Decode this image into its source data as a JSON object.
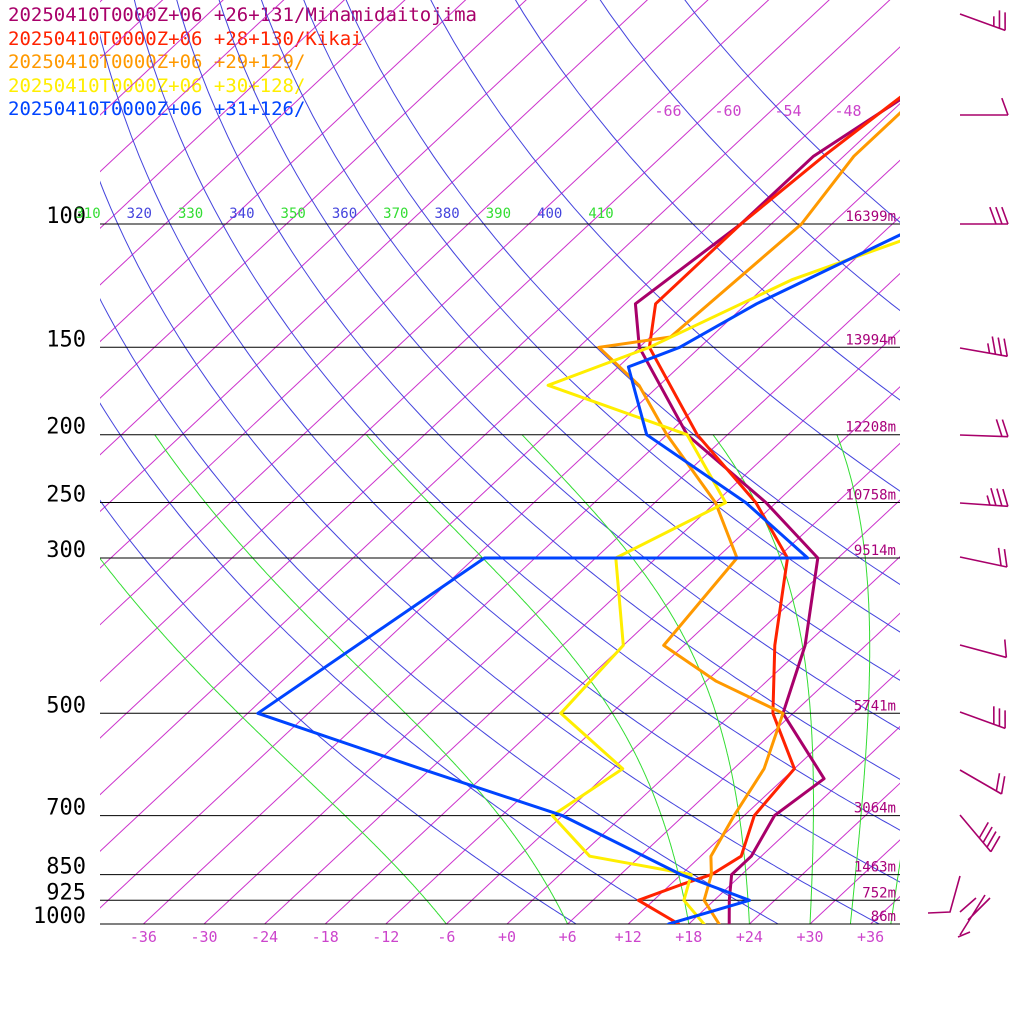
{
  "legend": [
    {
      "text": "20250410T0000Z+06 +26+131/Minamidaitojima",
      "color": "#a8006a"
    },
    {
      "text": "20250410T0000Z+06 +28+130/Kikai",
      "color": "#ff2200"
    },
    {
      "text": "20250410T0000Z+06 +29+129/",
      "color": "#ff9900"
    },
    {
      "text": "20250410T0000Z+06 +30+128/",
      "color": "#ffee00"
    },
    {
      "text": "20250410T0000Z+06 +31+126/",
      "color": "#0044ff"
    }
  ],
  "chart_data": {
    "type": "line",
    "title": "",
    "pressure_levels": [
      100,
      150,
      200,
      250,
      300,
      500,
      700,
      850,
      925,
      1000
    ],
    "pressure_labels": [
      "100",
      "150",
      "200",
      "250",
      "300",
      "500",
      "700",
      "850",
      "925",
      "1000"
    ],
    "height_labels": [
      {
        "p": 100,
        "text": "16399m"
      },
      {
        "p": 150,
        "text": "13994m"
      },
      {
        "p": 200,
        "text": "12208m"
      },
      {
        "p": 250,
        "text": "10758m"
      },
      {
        "p": 300,
        "text": "9514m"
      },
      {
        "p": 500,
        "text": "5741m"
      },
      {
        "p": 700,
        "text": "3064m"
      },
      {
        "p": 850,
        "text": "1463m"
      },
      {
        "p": 925,
        "text": "752m"
      },
      {
        "p": 1000,
        "text": "86m"
      }
    ],
    "x_tick_labels": [
      "-36",
      "-30",
      "-24",
      "-18",
      "-12",
      "-6",
      "+0",
      "+6",
      "+12",
      "+18",
      "+24",
      "+30",
      "+36"
    ],
    "x_tick_values": [
      -36,
      -30,
      -24,
      -18,
      -12,
      -6,
      0,
      6,
      12,
      18,
      24,
      30,
      36
    ],
    "upper_temp_labels": [
      "-66",
      "-60",
      "-54",
      "-48"
    ],
    "theta_labels": [
      {
        "text": "310",
        "color": "#33dd33"
      },
      {
        "text": "320",
        "color": "#4444dd"
      },
      {
        "text": "330",
        "color": "#33dd33"
      },
      {
        "text": "340",
        "color": "#4444dd"
      },
      {
        "text": "350",
        "color": "#33dd33"
      },
      {
        "text": "360",
        "color": "#4444dd"
      },
      {
        "text": "370",
        "color": "#33dd33"
      },
      {
        "text": "380",
        "color": "#4444dd"
      },
      {
        "text": "390",
        "color": "#33dd33"
      },
      {
        "text": "400",
        "color": "#4444dd"
      },
      {
        "text": "410",
        "color": "#33dd33"
      }
    ],
    "series": [
      {
        "name": "20250410T0000Z+06 +26+131/Minamidaitojima",
        "color": "#a8006a",
        "points": [
          [
            1000,
            22.0
          ],
          [
            925,
            19.5
          ],
          [
            850,
            17.0
          ],
          [
            800,
            17.0
          ],
          [
            700,
            15.0
          ],
          [
            620,
            16.0
          ],
          [
            500,
            5.0
          ],
          [
            400,
            0.0
          ],
          [
            300,
            -8.0
          ],
          [
            250,
            -19.0
          ],
          [
            200,
            -34.0
          ],
          [
            150,
            -48.0
          ],
          [
            130,
            -53.0
          ],
          [
            100,
            -51.0
          ],
          [
            80,
            -51.0
          ],
          [
            60,
            -47.0
          ],
          [
            45,
            -29.0
          ],
          [
            40,
            -20.0
          ]
        ]
      },
      {
        "name": "20250410T0000Z+06 +28+130/Kikai",
        "color": "#ff2200",
        "points": [
          [
            1000,
            17.0
          ],
          [
            925,
            10.5
          ],
          [
            880,
            13.0
          ],
          [
            850,
            15.0
          ],
          [
            800,
            16.0
          ],
          [
            700,
            13.0
          ],
          [
            600,
            12.0
          ],
          [
            500,
            4.0
          ],
          [
            400,
            -3.0
          ],
          [
            300,
            -11.0
          ],
          [
            250,
            -20.0
          ],
          [
            200,
            -33.0
          ],
          [
            150,
            -47.0
          ],
          [
            130,
            -51.0
          ],
          [
            100,
            -51.0
          ],
          [
            80,
            -50.0
          ],
          [
            60,
            -48.0
          ],
          [
            45,
            -34.0
          ],
          [
            40,
            -22.0
          ]
        ]
      },
      {
        "name": "20250410T0000Z+06 +29+129/",
        "color": "#ff9900",
        "points": [
          [
            1000,
            21.0
          ],
          [
            925,
            17.0
          ],
          [
            850,
            15.0
          ],
          [
            800,
            13.0
          ],
          [
            700,
            11.0
          ],
          [
            600,
            9.0
          ],
          [
            500,
            5.0
          ],
          [
            450,
            -5.0
          ],
          [
            400,
            -14.0
          ],
          [
            300,
            -16.0
          ],
          [
            250,
            -24.0
          ],
          [
            200,
            -36.0
          ],
          [
            170,
            -44.0
          ],
          [
            150,
            -52.0
          ],
          [
            145,
            -46.0
          ],
          [
            100,
            -45.0
          ],
          [
            80,
            -47.0
          ],
          [
            60,
            -47.0
          ],
          [
            45,
            -33.0
          ],
          [
            40,
            -16.0
          ]
        ]
      },
      {
        "name": "20250410T0000Z+06 +30+128/",
        "color": "#ffee00",
        "points": [
          [
            1000,
            19.5
          ],
          [
            925,
            15.0
          ],
          [
            850,
            13.0
          ],
          [
            800,
            1.0
          ],
          [
            700,
            -7.0
          ],
          [
            600,
            -5.0
          ],
          [
            500,
            -17.0
          ],
          [
            400,
            -18.0
          ],
          [
            300,
            -28.0
          ],
          [
            250,
            -23.0
          ],
          [
            200,
            -34.0
          ],
          [
            170,
            -53.0
          ],
          [
            150,
            -47.0
          ],
          [
            120,
            -40.0
          ],
          [
            105,
            -33.0
          ],
          [
            100,
            -33.0
          ],
          [
            80,
            -40.0
          ],
          [
            60,
            -46.0
          ],
          [
            45,
            -32.0
          ],
          [
            40,
            -14.0
          ]
        ]
      },
      {
        "name": "20250410T0000Z+06 +31+126/",
        "color": "#0044ff",
        "points": [
          [
            1000,
            16.0
          ],
          [
            925,
            21.5
          ],
          [
            850,
            12.0
          ],
          [
            700,
            -6.0
          ],
          [
            600,
            -25.0
          ],
          [
            500,
            -47.0
          ],
          [
            300,
            -41.0
          ],
          [
            300,
            -9.0
          ],
          [
            250,
            -21.0
          ],
          [
            200,
            -38.0
          ],
          [
            160,
            -47.0
          ],
          [
            150,
            -44.0
          ],
          [
            130,
            -41.0
          ],
          [
            100,
            -33.0
          ],
          [
            80,
            -34.0
          ],
          [
            60,
            -40.0
          ],
          [
            45,
            -31.0
          ],
          [
            40,
            -22.0
          ]
        ]
      }
    ],
    "dewpoint_traces_note": ""
  },
  "colors": {
    "isotherm": "#cc33cc",
    "dry_adiabat": "#4444dd",
    "moist_adiabat": "#33dd33",
    "isobar": "#000000",
    "wind_barb": "#a8006a"
  }
}
